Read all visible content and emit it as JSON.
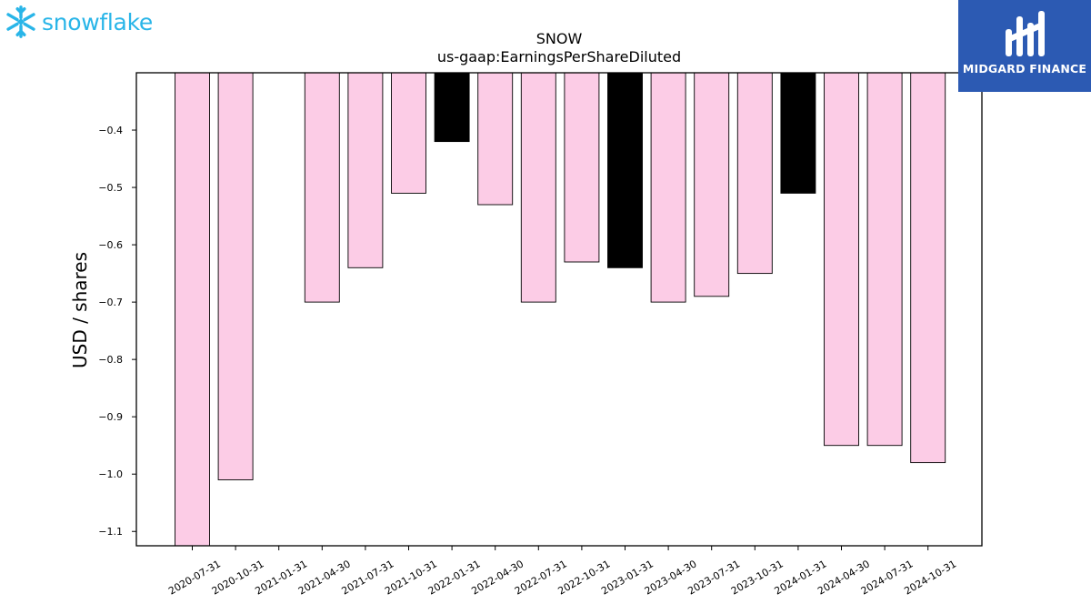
{
  "logos": {
    "left_text": "snowflake",
    "left_color": "#29b5e8",
    "right_text": "MIDGARD FINANCE",
    "right_bg": "#2c5ab3"
  },
  "chart_data": {
    "type": "bar",
    "title": "SNOW",
    "subtitle": "us-gaap:EarningsPerShareDiluted",
    "xlabel": "",
    "ylabel": "USD / shares",
    "ylim": [
      -1.125,
      -0.3
    ],
    "yticks": [
      -1.1,
      -1.0,
      -0.9,
      -0.8,
      -0.7,
      -0.6,
      -0.5,
      -0.4
    ],
    "ytick_labels": [
      "−1.1",
      "−1.0",
      "−0.9",
      "−0.8",
      "−0.7",
      "−0.6",
      "−0.5",
      "−0.4"
    ],
    "grid": false,
    "categories": [
      "2020-07-31",
      "2020-10-31",
      "2021-01-31",
      "2021-04-30",
      "2021-07-31",
      "2021-10-31",
      "2022-01-31",
      "2022-04-30",
      "2022-07-31",
      "2022-10-31",
      "2023-01-31",
      "2023-04-30",
      "2023-07-31",
      "2023-10-31",
      "2024-01-31",
      "2024-04-30",
      "2024-07-31",
      "2024-10-31"
    ],
    "values": [
      -1.125,
      -1.01,
      null,
      -0.7,
      -0.64,
      -0.51,
      -0.42,
      -0.53,
      -0.7,
      -0.63,
      -0.64,
      -0.7,
      -0.69,
      -0.65,
      -0.51,
      -0.95,
      -0.95,
      -0.98
    ],
    "colors": [
      "#fccce6",
      "#fccce6",
      "#fccce6",
      "#fccce6",
      "#fccce6",
      "#fccce6",
      "#000000",
      "#fccce6",
      "#fccce6",
      "#fccce6",
      "#000000",
      "#fccce6",
      "#fccce6",
      "#fccce6",
      "#000000",
      "#fccce6",
      "#fccce6",
      "#fccce6"
    ]
  }
}
